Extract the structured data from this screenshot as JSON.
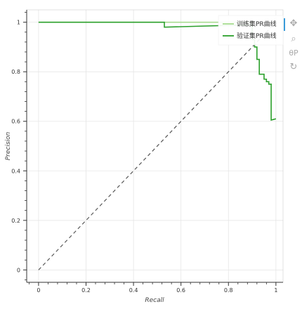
{
  "chart_data": {
    "type": "line",
    "title": "",
    "xlabel": "Recall",
    "ylabel": "Precision",
    "xlim": [
      -0.05,
      1.03
    ],
    "ylim": [
      -0.05,
      1.05
    ],
    "xticks": [
      0,
      0.2,
      0.4,
      0.6,
      0.8,
      1
    ],
    "xtick_labels": [
      "0",
      "0.2",
      "0.4",
      "0.6",
      "0.8",
      "1"
    ],
    "yticks": [
      0,
      0.2,
      0.4,
      0.6,
      0.8,
      1
    ],
    "ytick_labels": [
      "0",
      "0.2",
      "0.4",
      "0.6",
      "0.8",
      "1"
    ],
    "grid": true,
    "legend_position": "top-right",
    "series": [
      {
        "name": "训练集PR曲线",
        "color": "#a8dc90",
        "style": "solid",
        "x": [
          0,
          0.9
        ],
        "y": [
          1,
          1
        ]
      },
      {
        "name": "验证集PR曲线",
        "color": "#2ca02c",
        "style": "solid",
        "x": [
          0,
          0.53,
          0.53,
          0.9,
          0.9,
          0.91,
          0.91,
          0.92,
          0.92,
          0.93,
          0.93,
          0.95,
          0.95,
          0.96,
          0.96,
          0.97,
          0.97,
          0.98,
          0.98,
          1.0
        ],
        "y": [
          1,
          1,
          0.98,
          0.99,
          0.93,
          0.93,
          0.9,
          0.9,
          0.85,
          0.85,
          0.79,
          0.79,
          0.77,
          0.77,
          0.76,
          0.76,
          0.75,
          0.75,
          0.605,
          0.61
        ]
      },
      {
        "name": "",
        "color": "#555555",
        "style": "dashed",
        "x": [
          0,
          1
        ],
        "y": [
          0,
          1
        ]
      }
    ]
  },
  "toolbar": {
    "tools": [
      {
        "id": "pan",
        "icon": "pan-icon",
        "glyph": "✥"
      },
      {
        "id": "box-zoom",
        "icon": "box-zoom-icon",
        "glyph": "⌕"
      },
      {
        "id": "save",
        "icon": "save-icon",
        "glyph": "θP"
      },
      {
        "id": "reset",
        "icon": "reset-icon",
        "glyph": "↻"
      }
    ]
  }
}
